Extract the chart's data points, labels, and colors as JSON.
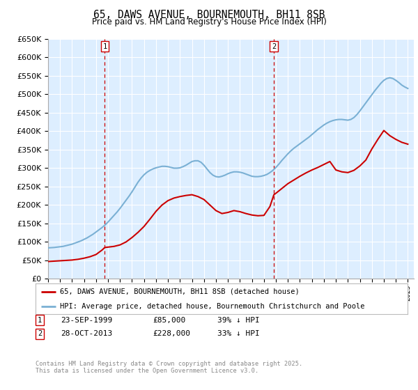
{
  "title": "65, DAWS AVENUE, BOURNEMOUTH, BH11 8SB",
  "subtitle": "Price paid vs. HM Land Registry's House Price Index (HPI)",
  "legend_line1": "65, DAWS AVENUE, BOURNEMOUTH, BH11 8SB (detached house)",
  "legend_line2": "HPI: Average price, detached house, Bournemouth Christchurch and Poole",
  "footnote": "Contains HM Land Registry data © Crown copyright and database right 2025.\nThis data is licensed under the Open Government Licence v3.0.",
  "transaction1_date": "23-SEP-1999",
  "transaction1_price": "£85,000",
  "transaction1_hpi": "39% ↓ HPI",
  "transaction2_date": "28-OCT-2013",
  "transaction2_price": "£228,000",
  "transaction2_hpi": "33% ↓ HPI",
  "plot_bg_color": "#ddeeff",
  "grid_color": "#ffffff",
  "fig_bg_color": "#ffffff",
  "red_color": "#cc0000",
  "blue_color": "#7ab0d4",
  "ylim": [
    0,
    650000
  ],
  "yticks": [
    0,
    50000,
    100000,
    150000,
    200000,
    250000,
    300000,
    350000,
    400000,
    450000,
    500000,
    550000,
    600000,
    650000
  ],
  "xmin": 1995.0,
  "xmax": 2025.5,
  "transaction1_x": 1999.73,
  "transaction2_x": 2013.83,
  "hpi_x": [
    1995.0,
    1995.25,
    1995.5,
    1995.75,
    1996.0,
    1996.25,
    1996.5,
    1996.75,
    1997.0,
    1997.25,
    1997.5,
    1997.75,
    1998.0,
    1998.25,
    1998.5,
    1998.75,
    1999.0,
    1999.25,
    1999.5,
    1999.75,
    2000.0,
    2000.25,
    2000.5,
    2000.75,
    2001.0,
    2001.25,
    2001.5,
    2001.75,
    2002.0,
    2002.25,
    2002.5,
    2002.75,
    2003.0,
    2003.25,
    2003.5,
    2003.75,
    2004.0,
    2004.25,
    2004.5,
    2004.75,
    2005.0,
    2005.25,
    2005.5,
    2005.75,
    2006.0,
    2006.25,
    2006.5,
    2006.75,
    2007.0,
    2007.25,
    2007.5,
    2007.75,
    2008.0,
    2008.25,
    2008.5,
    2008.75,
    2009.0,
    2009.25,
    2009.5,
    2009.75,
    2010.0,
    2010.25,
    2010.5,
    2010.75,
    2011.0,
    2011.25,
    2011.5,
    2011.75,
    2012.0,
    2012.25,
    2012.5,
    2012.75,
    2013.0,
    2013.25,
    2013.5,
    2013.75,
    2014.0,
    2014.25,
    2014.5,
    2014.75,
    2015.0,
    2015.25,
    2015.5,
    2015.75,
    2016.0,
    2016.25,
    2016.5,
    2016.75,
    2017.0,
    2017.25,
    2017.5,
    2017.75,
    2018.0,
    2018.25,
    2018.5,
    2018.75,
    2019.0,
    2019.25,
    2019.5,
    2019.75,
    2020.0,
    2020.25,
    2020.5,
    2020.75,
    2021.0,
    2021.25,
    2021.5,
    2021.75,
    2022.0,
    2022.25,
    2022.5,
    2022.75,
    2023.0,
    2023.25,
    2023.5,
    2023.75,
    2024.0,
    2024.25,
    2024.5,
    2024.75,
    2025.0
  ],
  "hpi_y": [
    84000,
    84500,
    85000,
    86000,
    87000,
    88000,
    90000,
    92000,
    94000,
    97000,
    100000,
    103000,
    107000,
    111000,
    116000,
    121000,
    127000,
    133000,
    139000,
    146000,
    154000,
    163000,
    172000,
    181000,
    191000,
    202000,
    213000,
    224000,
    236000,
    249000,
    262000,
    273000,
    282000,
    289000,
    294000,
    298000,
    301000,
    303000,
    305000,
    305000,
    304000,
    302000,
    300000,
    300000,
    301000,
    304000,
    308000,
    313000,
    318000,
    320000,
    320000,
    316000,
    308000,
    298000,
    288000,
    281000,
    277000,
    276000,
    278000,
    281000,
    285000,
    288000,
    290000,
    290000,
    289000,
    287000,
    284000,
    281000,
    278000,
    277000,
    277000,
    278000,
    280000,
    283000,
    288000,
    294000,
    302000,
    311000,
    321000,
    330000,
    339000,
    347000,
    354000,
    360000,
    366000,
    372000,
    378000,
    384000,
    391000,
    398000,
    405000,
    411000,
    417000,
    422000,
    426000,
    429000,
    431000,
    432000,
    432000,
    431000,
    430000,
    432000,
    437000,
    445000,
    455000,
    466000,
    477000,
    488000,
    499000,
    510000,
    520000,
    530000,
    538000,
    543000,
    545000,
    543000,
    538000,
    532000,
    525000,
    520000,
    516000
  ],
  "red_x": [
    1995.0,
    1995.5,
    1996.0,
    1996.5,
    1997.0,
    1997.5,
    1998.0,
    1998.5,
    1999.0,
    1999.5,
    1999.73,
    2000.0,
    2000.5,
    2001.0,
    2001.5,
    2002.0,
    2002.5,
    2003.0,
    2003.5,
    2004.0,
    2004.5,
    2005.0,
    2005.5,
    2006.0,
    2006.5,
    2007.0,
    2007.5,
    2008.0,
    2008.5,
    2009.0,
    2009.5,
    2010.0,
    2010.5,
    2011.0,
    2011.5,
    2012.0,
    2012.5,
    2013.0,
    2013.5,
    2013.83,
    2014.0,
    2014.5,
    2015.0,
    2015.5,
    2016.0,
    2016.5,
    2017.0,
    2017.5,
    2018.0,
    2018.5,
    2019.0,
    2019.5,
    2020.0,
    2020.5,
    2021.0,
    2021.5,
    2022.0,
    2022.5,
    2023.0,
    2023.5,
    2024.0,
    2024.5,
    2025.0
  ],
  "red_y": [
    47000,
    48000,
    49000,
    50000,
    51000,
    53000,
    56000,
    60000,
    66000,
    78000,
    85000,
    86000,
    88000,
    92000,
    100000,
    112000,
    126000,
    142000,
    162000,
    183000,
    200000,
    212000,
    219000,
    223000,
    226000,
    228000,
    223000,
    215000,
    200000,
    185000,
    177000,
    180000,
    185000,
    182000,
    177000,
    173000,
    171000,
    172000,
    196000,
    228000,
    232000,
    245000,
    258000,
    268000,
    278000,
    287000,
    295000,
    302000,
    310000,
    318000,
    295000,
    290000,
    288000,
    294000,
    306000,
    322000,
    352000,
    378000,
    402000,
    388000,
    378000,
    370000,
    365000
  ]
}
